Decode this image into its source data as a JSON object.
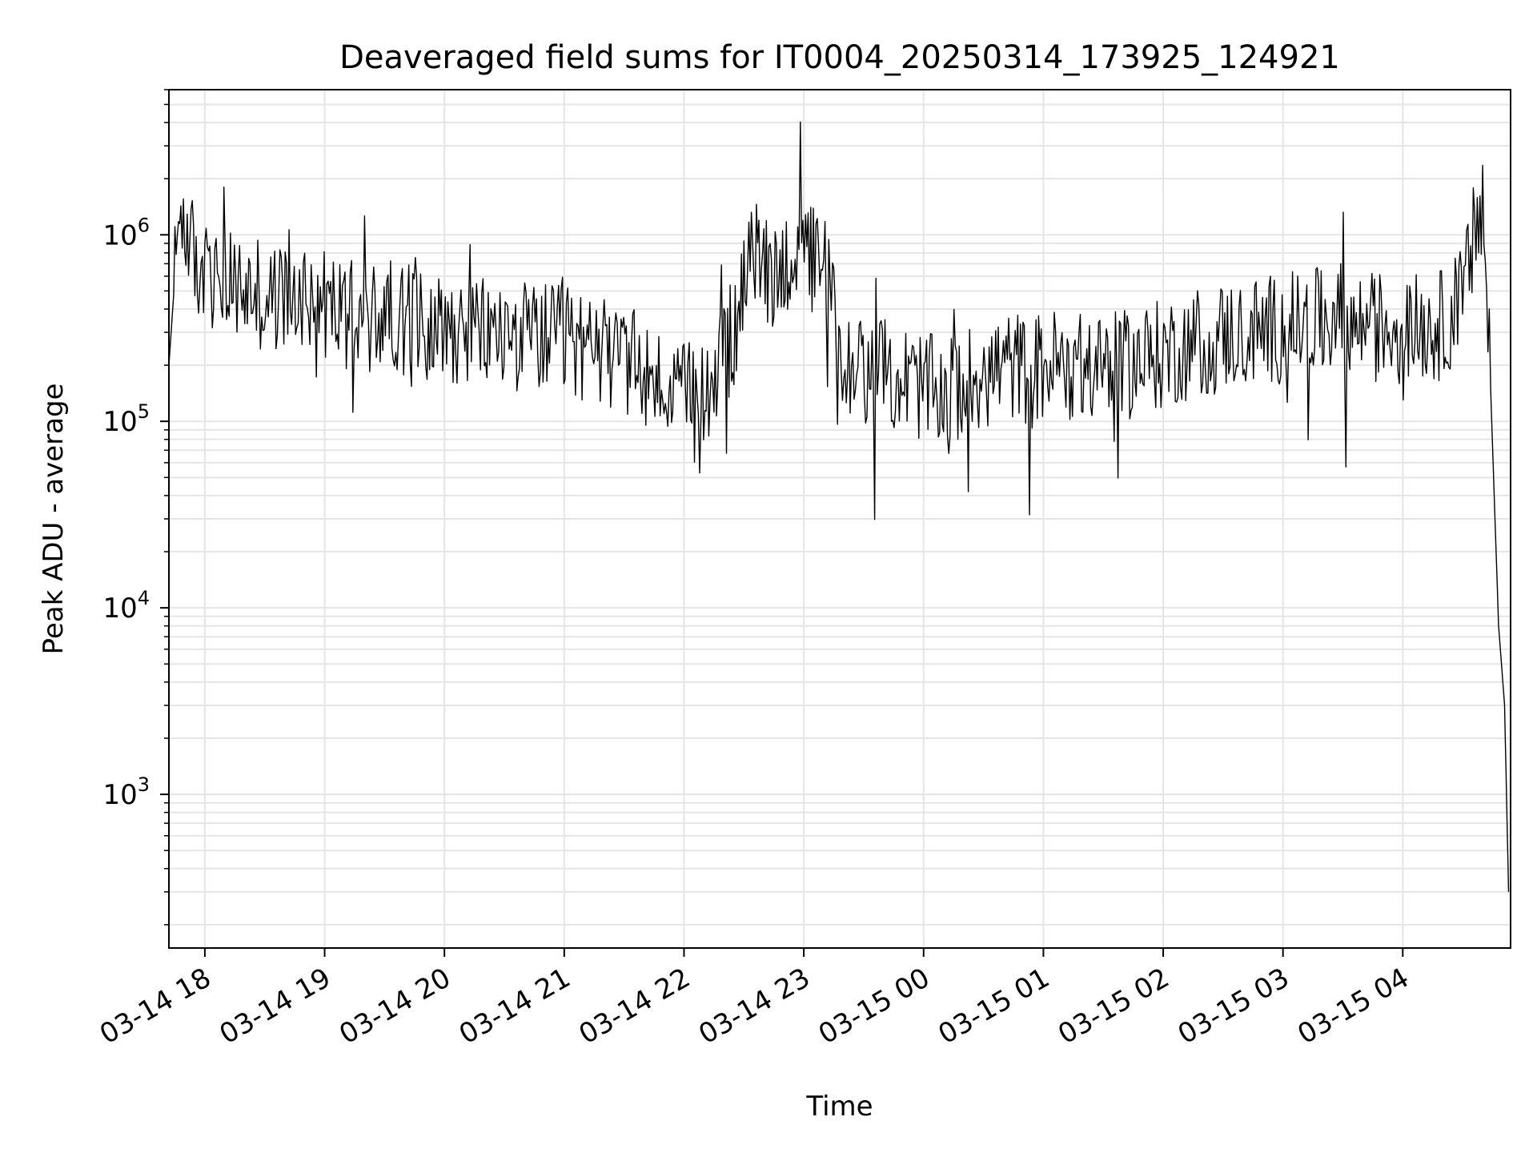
{
  "chart_data": {
    "type": "line",
    "title": "Deaveraged field sums for IT0004_20250314_173925_124921",
    "xlabel": "Time",
    "ylabel": "Peak ADU - average",
    "y_scale": "log",
    "ylim": [
      150,
      6000000
    ],
    "xlim": [
      "2025-03-14 17:42",
      "2025-03-15 04:54"
    ],
    "grid": true,
    "line_color": "#000000",
    "grid_color": "#e5e5e5",
    "x_ticks": [
      {
        "t": "2025-03-14 18:00",
        "label": "03-14 18"
      },
      {
        "t": "2025-03-14 19:00",
        "label": "03-14 19"
      },
      {
        "t": "2025-03-14 20:00",
        "label": "03-14 20"
      },
      {
        "t": "2025-03-14 21:00",
        "label": "03-14 21"
      },
      {
        "t": "2025-03-14 22:00",
        "label": "03-14 22"
      },
      {
        "t": "2025-03-14 23:00",
        "label": "03-14 23"
      },
      {
        "t": "2025-03-15 00:00",
        "label": "03-15 00"
      },
      {
        "t": "2025-03-15 01:00",
        "label": "03-15 01"
      },
      {
        "t": "2025-03-15 02:00",
        "label": "03-15 02"
      },
      {
        "t": "2025-03-15 03:00",
        "label": "03-15 03"
      },
      {
        "t": "2025-03-15 04:00",
        "label": "03-15 04"
      }
    ],
    "y_ticks": [
      {
        "value": 1000,
        "base": "10",
        "exp": "3"
      },
      {
        "value": 10000,
        "base": "10",
        "exp": "4"
      },
      {
        "value": 100000,
        "base": "10",
        "exp": "5"
      },
      {
        "value": 1000000,
        "base": "10",
        "exp": "6"
      }
    ],
    "series": [
      {
        "x": [
          "2025-03-14 17:42",
          "2025-03-14 17:45",
          "2025-03-14 17:48",
          "2025-03-14 17:55",
          "2025-03-14 18:05",
          "2025-03-14 18:20",
          "2025-03-14 18:35",
          "2025-03-14 18:50",
          "2025-03-14 19:05",
          "2025-03-14 19:20",
          "2025-03-14 19:35",
          "2025-03-14 19:50",
          "2025-03-14 20:05",
          "2025-03-14 20:20",
          "2025-03-14 20:35",
          "2025-03-14 20:50",
          "2025-03-14 21:05",
          "2025-03-14 21:20",
          "2025-03-14 21:35",
          "2025-03-14 21:50",
          "2025-03-14 22:00",
          "2025-03-14 22:15",
          "2025-03-14 22:25",
          "2025-03-14 22:35",
          "2025-03-14 22:45",
          "2025-03-14 22:55",
          "2025-03-14 23:10",
          "2025-03-14 23:20",
          "2025-03-14 23:40",
          "2025-03-14 23:55",
          "2025-03-15 00:10",
          "2025-03-15 00:25",
          "2025-03-15 00:40",
          "2025-03-15 00:55",
          "2025-03-15 01:10",
          "2025-03-15 01:25",
          "2025-03-15 01:40",
          "2025-03-15 01:55",
          "2025-03-15 02:10",
          "2025-03-15 02:25",
          "2025-03-15 02:40",
          "2025-03-15 02:55",
          "2025-03-15 03:10",
          "2025-03-15 03:25",
          "2025-03-15 03:40",
          "2025-03-15 03:55",
          "2025-03-15 04:10",
          "2025-03-15 04:20",
          "2025-03-15 04:30",
          "2025-03-15 04:36",
          "2025-03-15 04:40",
          "2025-03-15 04:44",
          "2025-03-15 04:48",
          "2025-03-15 04:51",
          "2025-03-15 04:53"
        ],
        "y": [
          200000,
          600000,
          1500000,
          700000,
          550000,
          500000,
          450000,
          500000,
          400000,
          350000,
          380000,
          330000,
          320000,
          300000,
          290000,
          280000,
          260000,
          230000,
          200000,
          150000,
          130000,
          170000,
          300000,
          800000,
          600000,
          800000,
          700000,
          200000,
          180000,
          160000,
          140000,
          170000,
          200000,
          190000,
          210000,
          180000,
          200000,
          220000,
          250000,
          280000,
          300000,
          310000,
          330000,
          340000,
          320000,
          330000,
          320000,
          330000,
          450000,
          1000000,
          1300000,
          150000,
          8000,
          3000,
          300
        ]
      }
    ]
  }
}
